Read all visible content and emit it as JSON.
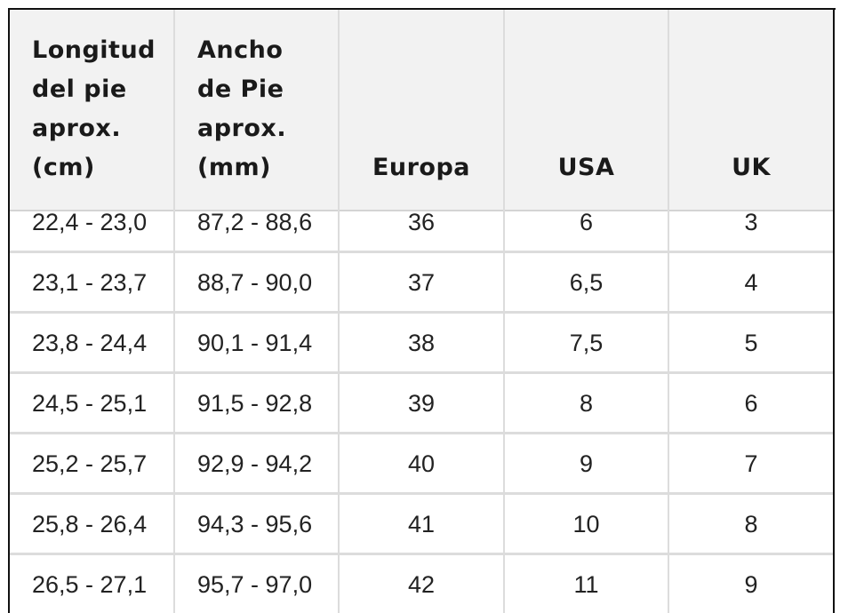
{
  "table": {
    "header": [
      "Longitud\ndel pie\naprox.\n(cm)",
      "Ancho\nde Pie\naprox.\n(mm)",
      "Europa",
      "USA",
      "UK"
    ],
    "rows": [
      [
        "22,4 - 23,0",
        "87,2 - 88,6",
        "36",
        "6",
        "3"
      ],
      [
        "23,1 - 23,7",
        "88,7 - 90,0",
        "37",
        "6,5",
        "4"
      ],
      [
        "23,8 - 24,4",
        "90,1 - 91,4",
        "38",
        "7,5",
        "5"
      ],
      [
        "24,5 - 25,1",
        "91,5 - 92,8",
        "39",
        "8",
        "6"
      ],
      [
        "25,2 - 25,7",
        "92,9 - 94,2",
        "40",
        "9",
        "7"
      ],
      [
        "25,8 - 26,4",
        "94,3 - 95,6",
        "41",
        "10",
        "8"
      ],
      [
        "26,5 - 27,1",
        "95,7 - 97,0",
        "42",
        "11",
        "9"
      ]
    ]
  }
}
